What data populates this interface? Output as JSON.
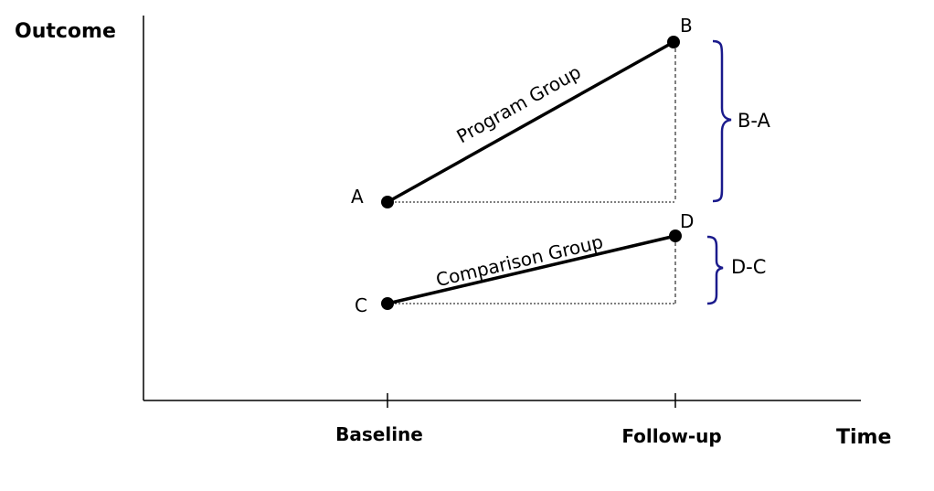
{
  "axes": {
    "y_title": "Outcome",
    "x_title": "Time",
    "ticks": [
      "Baseline",
      "Follow-up"
    ]
  },
  "points": {
    "A": "A",
    "B": "B",
    "C": "C",
    "D": "D"
  },
  "lines": {
    "program": "Program Group",
    "comparison": "Comparison Group"
  },
  "braces": {
    "program_diff": "B-A",
    "comparison_diff": "D-C"
  },
  "colors": {
    "brace": "#1a1a8c",
    "line": "#000000"
  }
}
